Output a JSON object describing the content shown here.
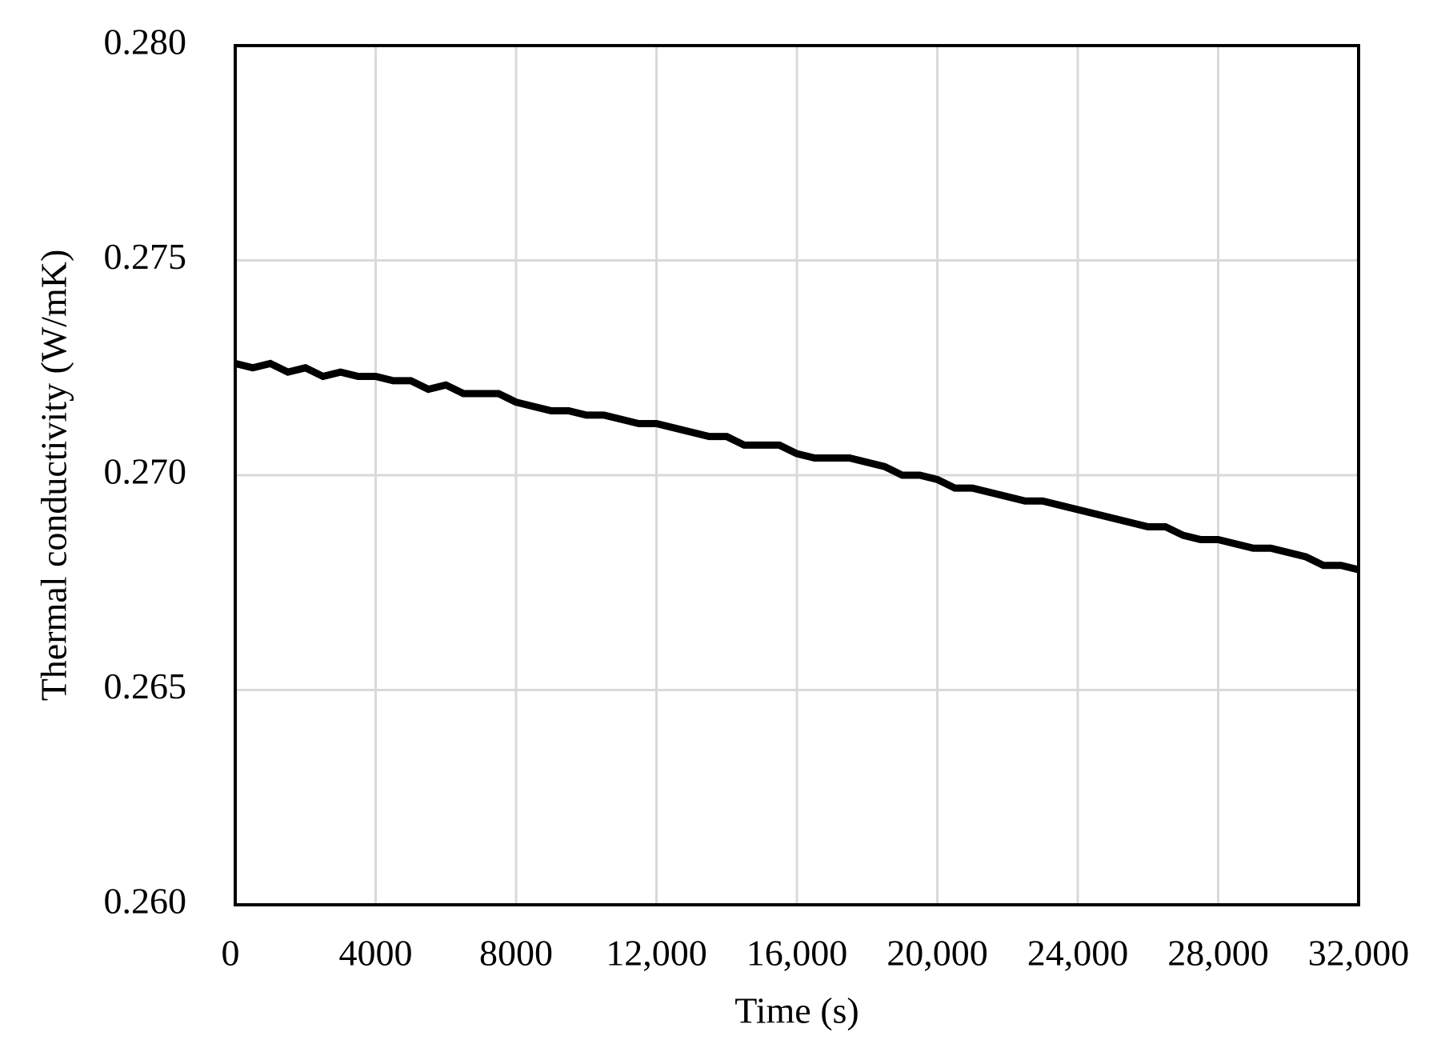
{
  "chart_data": {
    "type": "line",
    "x_label": "Time (s)",
    "y_label": "Thermal conductivity (W/mK)",
    "xlim": [
      0,
      32000
    ],
    "ylim": [
      0.26,
      0.28
    ],
    "xticks": [
      0,
      4000,
      8000,
      {
        "value": 12000,
        "label": "12,000"
      },
      {
        "value": 16000,
        "label": "16,000"
      },
      {
        "value": 20000,
        "label": "20,000"
      },
      {
        "value": 24000,
        "label": "24,000"
      },
      {
        "value": 28000,
        "label": "28,000"
      },
      {
        "value": 32000,
        "label": "32,000"
      }
    ],
    "yticks": [
      {
        "value": 0.26,
        "label": "0.260"
      },
      {
        "value": 0.265,
        "label": "0.265"
      },
      {
        "value": 0.27,
        "label": "0.270"
      },
      {
        "value": 0.275,
        "label": "0.275"
      },
      {
        "value": 0.28,
        "label": "0.280"
      }
    ],
    "grid": true,
    "series": [
      {
        "color": "#000000",
        "x": [
          0,
          500,
          1000,
          1500,
          2000,
          2500,
          3000,
          3500,
          4000,
          4500,
          5000,
          5500,
          6000,
          6500,
          7000,
          7500,
          8000,
          8500,
          9000,
          9500,
          10000,
          10500,
          11000,
          11500,
          12000,
          12500,
          13000,
          13500,
          14000,
          14500,
          15000,
          15500,
          16000,
          16500,
          17000,
          17500,
          18000,
          18500,
          19000,
          19500,
          20000,
          20500,
          21000,
          21500,
          22000,
          22500,
          23000,
          23500,
          24000,
          24500,
          25000,
          25500,
          26000,
          26500,
          27000,
          27500,
          28000,
          28500,
          29000,
          29500,
          30000,
          30500,
          31000,
          31500,
          32000
        ],
        "values": [
          0.2726,
          0.2725,
          0.2726,
          0.2724,
          0.2725,
          0.2723,
          0.2724,
          0.2723,
          0.2723,
          0.2722,
          0.2722,
          0.272,
          0.2721,
          0.2719,
          0.2719,
          0.2719,
          0.2717,
          0.2716,
          0.2715,
          0.2715,
          0.2714,
          0.2714,
          0.2713,
          0.2712,
          0.2712,
          0.2711,
          0.271,
          0.2709,
          0.2709,
          0.2707,
          0.2707,
          0.2707,
          0.2705,
          0.2704,
          0.2704,
          0.2704,
          0.2703,
          0.2702,
          0.27,
          0.27,
          0.2699,
          0.2697,
          0.2697,
          0.2696,
          0.2695,
          0.2694,
          0.2694,
          0.2693,
          0.2692,
          0.2691,
          0.269,
          0.2689,
          0.2688,
          0.2688,
          0.2686,
          0.2685,
          0.2685,
          0.2684,
          0.2683,
          0.2683,
          0.2682,
          0.2681,
          0.2679,
          0.2679,
          0.2678
        ]
      }
    ]
  }
}
